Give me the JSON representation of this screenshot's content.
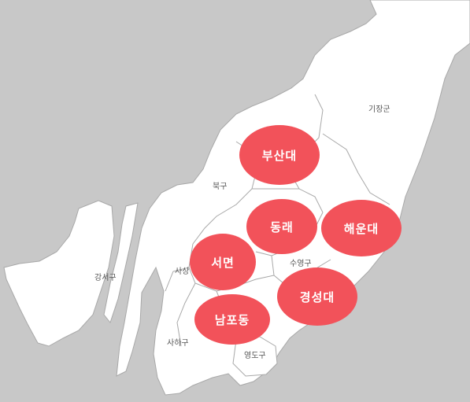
{
  "colors": {
    "background": "#c8c8c8",
    "land": "#ffffff",
    "border": "#a8a8a8",
    "hotspot": "#f2525a",
    "label": "#555555"
  },
  "districts": {
    "gijang": "기장군",
    "buk": "북구",
    "gangseo": "강서구",
    "suyeong": "수영구",
    "saha": "사하구",
    "yeongdo": "영도구",
    "sasang": "사상"
  },
  "hotspots": {
    "pusan_univ": "부산대",
    "dongrae": "동래",
    "haeundae": "해운대",
    "seomyeon": "서면",
    "kyungsung_univ": "경성대",
    "nampo": "남포동"
  }
}
